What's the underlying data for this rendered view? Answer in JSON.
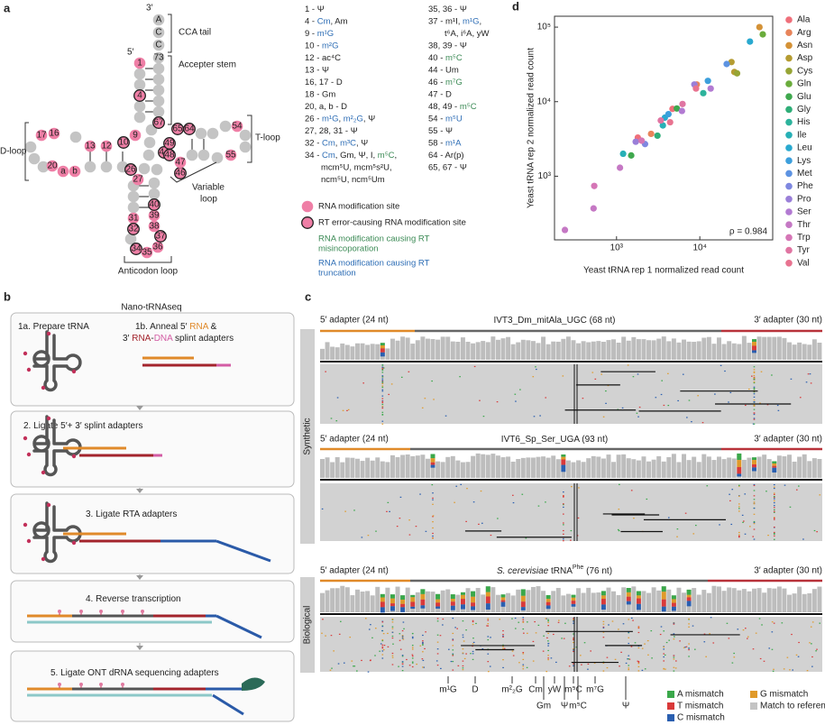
{
  "panel_a": {
    "label": "a",
    "three_prime": "3′",
    "five_prime": "5′",
    "cca": [
      "A",
      "C",
      "C"
    ],
    "terminal": "73",
    "sites": [
      {
        "label": "1",
        "rt_error": false
      },
      {
        "label": "4",
        "rt_error": true
      },
      {
        "label": "67",
        "rt_error": true
      },
      {
        "label": "9",
        "rt_error": false
      },
      {
        "label": "10",
        "rt_error": true
      },
      {
        "label": "12",
        "rt_error": false
      },
      {
        "label": "13",
        "rt_error": false
      },
      {
        "label": "16",
        "rt_error": false
      },
      {
        "label": "17",
        "rt_error": false
      },
      {
        "label": "20",
        "rt_error": false
      },
      {
        "label": "a",
        "rt_error": false
      },
      {
        "label": "b",
        "rt_error": false
      },
      {
        "label": "26",
        "rt_error": true
      },
      {
        "label": "27",
        "rt_error": false
      },
      {
        "label": "31",
        "rt_error": false
      },
      {
        "label": "32",
        "rt_error": true
      },
      {
        "label": "34",
        "rt_error": true
      },
      {
        "label": "35",
        "rt_error": false
      },
      {
        "label": "36",
        "rt_error": false
      },
      {
        "label": "37",
        "rt_error": true
      },
      {
        "label": "38",
        "rt_error": false
      },
      {
        "label": "39",
        "rt_error": false
      },
      {
        "label": "40",
        "rt_error": true
      },
      {
        "label": "44",
        "rt_error": true
      },
      {
        "label": "46",
        "rt_error": true
      },
      {
        "label": "47",
        "rt_error": false
      },
      {
        "label": "48",
        "rt_error": true
      },
      {
        "label": "49",
        "rt_error": true
      },
      {
        "label": "64",
        "rt_error": true
      },
      {
        "label": "65",
        "rt_error": true
      },
      {
        "label": "54",
        "rt_error": false
      },
      {
        "label": "55",
        "rt_error": false
      }
    ],
    "regions": {
      "cca_tail": "CCA tail",
      "acceptor_stem": "Accepter stem",
      "d_loop": "D-loop",
      "t_loop": "T-loop",
      "variable_loop": [
        "Variable",
        "loop"
      ],
      "anticodon_loop": "Anticodon loop"
    },
    "modifications": [
      [
        [
          "1 - Ψ"
        ],
        [
          "4 - ",
          {
            "text": "Cm",
            "color": "#2d6db5"
          },
          ", Am"
        ],
        [
          "9 - ",
          {
            "text": "m¹G",
            "color": "#2d6db5"
          }
        ],
        [
          "10 - ",
          {
            "text": "m²G",
            "color": "#2d6db5"
          }
        ],
        [
          "12 - ac⁴C"
        ],
        [
          "13 - Ψ"
        ],
        [
          "16, 17 - D"
        ],
        [
          "18 - Gm"
        ],
        [
          "20, a, b - D"
        ],
        [
          "26 - ",
          {
            "text": "m¹G",
            "color": "#2d6db5"
          },
          ", ",
          {
            "text": "m²₂G",
            "color": "#2d6db5"
          },
          ", Ψ"
        ],
        [
          "27, 28, 31 - Ψ"
        ],
        [
          "32 - ",
          {
            "text": "Cm",
            "color": "#2d6db5"
          },
          ", ",
          {
            "text": "m³C",
            "color": "#2d6db5"
          },
          ", Ψ"
        ],
        [
          "34 - ",
          {
            "text": "Cm",
            "color": "#2d6db5"
          },
          ", Gm, Ψ, I, ",
          {
            "text": "m⁵C",
            "color": "#3b8a55"
          },
          ","
        ],
        [
          "mcm⁵U, mcm⁵s²U,"
        ],
        [
          "ncm⁵U, ncm⁵Um"
        ]
      ],
      [
        [
          "35, 36 - Ψ"
        ],
        [
          "37 - m¹I, ",
          {
            "text": "m¹G",
            "color": "#2d6db5"
          },
          ","
        ],
        [
          "t⁶A, i⁶A, yW"
        ],
        [
          "38, 39 - Ψ"
        ],
        [
          "40 - ",
          {
            "text": "m⁵C",
            "color": "#3b8a55"
          }
        ],
        [
          "44 - Um"
        ],
        [
          "46 - ",
          {
            "text": "m⁷G",
            "color": "#3b8a55"
          }
        ],
        [
          "47 - D"
        ],
        [
          "48, 49 - ",
          {
            "text": "m⁵C",
            "color": "#3b8a55"
          }
        ],
        [
          "54 - ",
          {
            "text": "m⁵U",
            "color": "#2d6db5"
          }
        ],
        [
          "55 - Ψ"
        ],
        [
          "58 - ",
          {
            "text": "m¹A",
            "color": "#2d6db5"
          }
        ],
        [
          "64 - Ar(p)"
        ],
        [
          "65, 67 - Ψ"
        ]
      ]
    ],
    "legend": {
      "site": "RNA modification site",
      "rt_site": "RT error-causing RNA modification site",
      "misincorporation": {
        "lines": [
          "RNA modification causing RT",
          "misincoporation"
        ],
        "color": "#3b8a55"
      },
      "truncation": {
        "lines": [
          "RNA modification causing RT",
          "truncation"
        ],
        "color": "#2d6db5"
      }
    }
  },
  "panel_b": {
    "label": "b",
    "title": "Nano-tRNAseq",
    "steps": [
      [
        "1a. Prepare tRNA"
      ],
      [
        "1b. Anneal 5′ ",
        {
          "text": "RNA",
          "color": "#e08a2a"
        },
        " &"
      ],
      [
        "3′ ",
        {
          "text": "RNA",
          "color": "#a3242c"
        },
        "-",
        {
          "text": "DNA",
          "color": "#d35ca4"
        },
        " splint adapters"
      ],
      [
        "2. Ligate 5′+ 3′ splint adapters"
      ],
      [
        "3. Ligate RTA adapters"
      ],
      [
        "4. Reverse transcription"
      ],
      [
        "5. Ligate ONT dRNA sequencing adapters"
      ]
    ]
  },
  "panel_c": {
    "label": "c",
    "groups": [
      "Synthetic",
      "Biological"
    ],
    "tracks": [
      {
        "left": "5′ adapter (24 nt)",
        "title": [
          "IVT3_Dm_mitAla_UGC (68 nt)"
        ],
        "right": "3′ adapter (30 nt)"
      },
      {
        "left": "5′ adapter (24 nt)",
        "title": [
          "IVT6_Sp_Ser_UGA (93 nt)"
        ],
        "right": "3′ adapter (30 nt)"
      },
      {
        "left": "5′ adapter (24 nt)",
        "title": [
          {
            "text": "S. cerevisiae",
            "italic": true
          },
          " tRNA",
          {
            "text": "Phe",
            "superscript": true
          },
          " (76 nt)"
        ],
        "right": "3′ adapter (30 nt)"
      }
    ],
    "modification_labels": [
      [
        "m¹G",
        "D",
        "m²₂G",
        "Cm",
        "yW",
        "m⁵C",
        "m⁷G"
      ],
      [
        "Gm",
        "Ψ",
        "m⁵C",
        "Ψ"
      ]
    ],
    "legend": [
      {
        "label": "A mismatch",
        "color": "#3aa84a"
      },
      {
        "label": "G mismatch",
        "color": "#e09a2a"
      },
      {
        "label": "T mismatch",
        "color": "#d93a3a"
      },
      {
        "label": "Match to reference",
        "color": "#c4c4c4"
      },
      {
        "label": "C mismatch",
        "color": "#2a5fb0"
      }
    ]
  },
  "chart_data": {
    "type": "scatter",
    "panel_label": "d",
    "xlabel": "Yeast tRNA rep 1 normalized read count",
    "ylabel": "Yeast tRNA rep 2 normalized read count",
    "xscale": "log",
    "yscale": "log",
    "xlim": [
      180,
      75000
    ],
    "ylim": [
      140,
      140000
    ],
    "xticks": [
      {
        "value": 1000,
        "label": "10³"
      },
      {
        "value": 10000,
        "label": "10⁴"
      }
    ],
    "yticks": [
      {
        "value": 1000,
        "label": "10³"
      },
      {
        "value": 10000,
        "label": "10⁴"
      },
      {
        "value": 100000,
        "label": "10⁵"
      }
    ],
    "annotation": "ρ = 0.984",
    "legend": "right",
    "series": [
      {
        "name": "Ala",
        "color": "#ef6f7a",
        "x": [
          1800,
          4700
        ],
        "values": [
          3300,
          8000
        ]
      },
      {
        "name": "Arg",
        "color": "#e8845a",
        "x": [
          9200,
          2600
        ],
        "values": [
          17000,
          3700
        ]
      },
      {
        "name": "Asn",
        "color": "#d49237",
        "x": [
          52000
        ],
        "values": [
          100000
        ]
      },
      {
        "name": "Asp",
        "color": "#b59c32",
        "x": [
          26000,
          24000
        ],
        "values": [
          25000,
          34000
        ]
      },
      {
        "name": "Cys",
        "color": "#97a535",
        "x": [
          28000
        ],
        "values": [
          24000
        ]
      },
      {
        "name": "Gln",
        "color": "#6aac3c",
        "x": [
          57000
        ],
        "values": [
          80000
        ]
      },
      {
        "name": "Glu",
        "color": "#3fa84e",
        "x": [
          5300,
          1500
        ],
        "values": [
          8100,
          1900
        ]
      },
      {
        "name": "Gly",
        "color": "#2fae78",
        "x": [
          3100
        ],
        "values": [
          3500
        ]
      },
      {
        "name": "His",
        "color": "#2db39c",
        "x": [
          11000
        ],
        "values": [
          13000
        ]
      },
      {
        "name": "Ile",
        "color": "#27b0b6",
        "x": [
          1200,
          3600
        ],
        "values": [
          2000,
          4800
        ]
      },
      {
        "name": "Leu",
        "color": "#29a9cf",
        "x": [
          40000,
          3800
        ],
        "values": [
          64000,
          6100
        ]
      },
      {
        "name": "Lys",
        "color": "#3d9fdc",
        "x": [
          12500,
          4200
        ],
        "values": [
          19000,
          6800
        ]
      },
      {
        "name": "Met",
        "color": "#5d93e2",
        "x": [
          21000
        ],
        "values": [
          32000
        ]
      },
      {
        "name": "Phe",
        "color": "#7f88e0",
        "x": [
          2200
        ],
        "values": [
          2700
        ]
      },
      {
        "name": "Pro",
        "color": "#9a7fd8",
        "x": [
          8600,
          1700
        ],
        "values": [
          17000,
          2900
        ]
      },
      {
        "name": "Ser",
        "color": "#b27ad2",
        "x": [
          13500,
          6100
        ],
        "values": [
          15000,
          7500
        ]
      },
      {
        "name": "Thr",
        "color": "#c578c4",
        "x": [
          240,
          530,
          1100
        ],
        "values": [
          190,
          370,
          1300
        ]
      },
      {
        "name": "Trp",
        "color": "#d576b6",
        "x": [
          540,
          2000
        ],
        "values": [
          740,
          3000
        ]
      },
      {
        "name": "Tyr",
        "color": "#e075a2",
        "x": [
          6200,
          3400
        ],
        "values": [
          9300,
          5600
        ]
      },
      {
        "name": "Val",
        "color": "#e87390",
        "x": [
          9000,
          4400
        ],
        "values": [
          15000,
          5300
        ]
      }
    ]
  }
}
